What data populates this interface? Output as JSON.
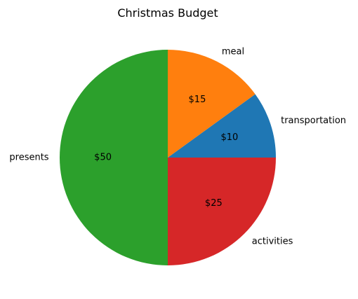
{
  "chart_data": {
    "type": "pie",
    "title": "Christmas Budget",
    "slices": [
      {
        "label": "transportation",
        "value": 10,
        "value_label": "$10",
        "color": "#1f77b4"
      },
      {
        "label": "meal",
        "value": 15,
        "value_label": "$15",
        "color": "#ff7f0e"
      },
      {
        "label": "presents",
        "value": 50,
        "value_label": "$50",
        "color": "#2ca02c"
      },
      {
        "label": "activities",
        "value": 25,
        "value_label": "$25",
        "color": "#d62728"
      }
    ],
    "start_angle_deg": 0,
    "direction": "counterclockwise",
    "legend": "none"
  }
}
